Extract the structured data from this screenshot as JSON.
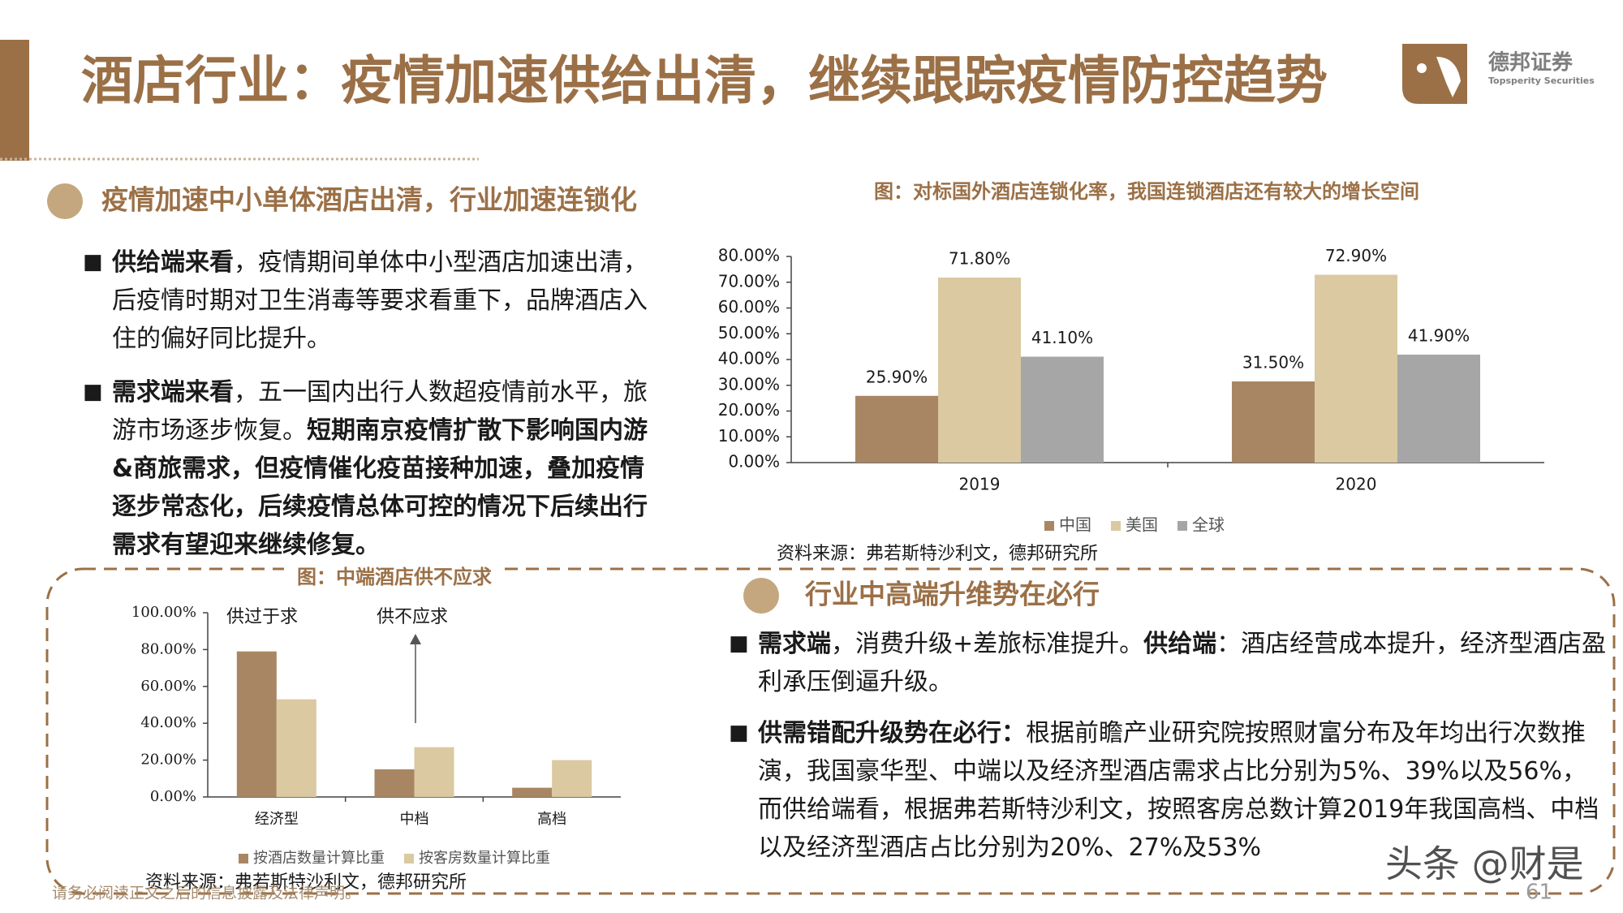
{
  "header": {
    "title": "酒店行业：疫情加速供给出清，继续跟踪疫情防控趋势",
    "logo_name": "德邦证券",
    "logo_subtitle": "Topsperity Securities"
  },
  "section1": {
    "heading": "疫情加速中小单体酒店出清，行业加速连锁化",
    "bullets": [
      {
        "runs": [
          {
            "text": "供给端来看",
            "bold": true
          },
          {
            "text": "，疫情期间单体中小型酒店加速出清，后疫情时期对卫生消毒等要求看重下，品牌酒店入住的偏好同比提升。",
            "bold": false
          }
        ]
      },
      {
        "runs": [
          {
            "text": "需求端来看",
            "bold": true
          },
          {
            "text": "，五一国内出行人数超疫情前水平，旅游市场逐步恢复。",
            "bold": false
          },
          {
            "text": "短期南京疫情扩散下影响国内游&商旅需求，但疫情催化疫苗接种加速，叠加疫情逐步常态化，后续疫情总体可控的情况下后续出行需求有望迎来继续修复。",
            "bold": true
          }
        ]
      }
    ]
  },
  "chart_data": [
    {
      "type": "bar",
      "title": "图：对标国外酒店连锁化率，我国连锁酒店还有较大的增长空间",
      "categories": [
        "2019",
        "2020"
      ],
      "series": [
        {
          "name": "中国",
          "color": "#a98663",
          "values": [
            25.9,
            31.5
          ],
          "value_labels": [
            "25.90%",
            "31.50%"
          ]
        },
        {
          "name": "美国",
          "color": "#dac9a1",
          "values": [
            71.8,
            72.9
          ],
          "value_labels": [
            "71.80%",
            "72.90%"
          ]
        },
        {
          "name": "全球",
          "color": "#a6a6a6",
          "values": [
            41.1,
            41.9
          ],
          "value_labels": [
            "41.10%",
            "41.90%"
          ]
        }
      ],
      "ylim": [
        0,
        80
      ],
      "yticks": [
        {
          "value": 0,
          "label": "0.00%"
        },
        {
          "value": 10,
          "label": "10.00%"
        },
        {
          "value": 20,
          "label": "20.00%"
        },
        {
          "value": 30,
          "label": "30.00%"
        },
        {
          "value": 40,
          "label": "40.00%"
        },
        {
          "value": 50,
          "label": "50.00%"
        },
        {
          "value": 60,
          "label": "60.00%"
        },
        {
          "value": 70,
          "label": "70.00%"
        },
        {
          "value": 80,
          "label": "80.00%"
        }
      ],
      "legend": "bottom",
      "source": "资料来源：弗若斯特沙利文，德邦研究所"
    },
    {
      "type": "bar",
      "title": "图：中端酒店供不应求",
      "categories": [
        "经济型",
        "中档",
        "高档"
      ],
      "series": [
        {
          "name": "按酒店数量计算比重",
          "color": "#a98663",
          "values": [
            79,
            15,
            5
          ]
        },
        {
          "name": "按客房数量计算比重",
          "color": "#dac9a1",
          "values": [
            53,
            27,
            20
          ]
        }
      ],
      "ylim": [
        0,
        100
      ],
      "yticks": [
        {
          "value": 0,
          "label": "0.00%"
        },
        {
          "value": 20,
          "label": "20.00%"
        },
        {
          "value": 40,
          "label": "40.00%"
        },
        {
          "value": 60,
          "label": "60.00%"
        },
        {
          "value": 80,
          "label": "80.00%"
        },
        {
          "value": 100,
          "label": "100.00%"
        }
      ],
      "legend": "bottom",
      "annotations": [
        "供过于求",
        "供不应求"
      ],
      "source": "资料来源：弗若斯特沙利文，德邦研究所"
    }
  ],
  "section2": {
    "heading": "行业中高端升维势在必行",
    "bullets": [
      {
        "runs": [
          {
            "text": "需求端",
            "bold": true
          },
          {
            "text": "，消费升级+差旅标准提升。",
            "bold": false
          },
          {
            "text": "供给端",
            "bold": true
          },
          {
            "text": "：酒店经营成本提升，经济型酒店盈利承压倒逼升级。",
            "bold": false
          }
        ]
      },
      {
        "runs": [
          {
            "text": "供需错配升级势在必行：",
            "bold": true
          },
          {
            "text": "根据前瞻产业研究院按照财富分布及年均出行次数推演，我国豪华型、中端以及经济型酒店需求占比分别为5%、39%以及56%，而供给端看，根据弗若斯特沙利文，按照客房总数计算2019年我国高档、中档以及经济型酒店占比分别为20%、27%及53%",
            "bold": false
          }
        ]
      }
    ]
  },
  "footer": {
    "disclaimer": "请务必阅读正文之后的信息披露及法律声明。",
    "page": 61,
    "watermark": "头条 @财是"
  }
}
